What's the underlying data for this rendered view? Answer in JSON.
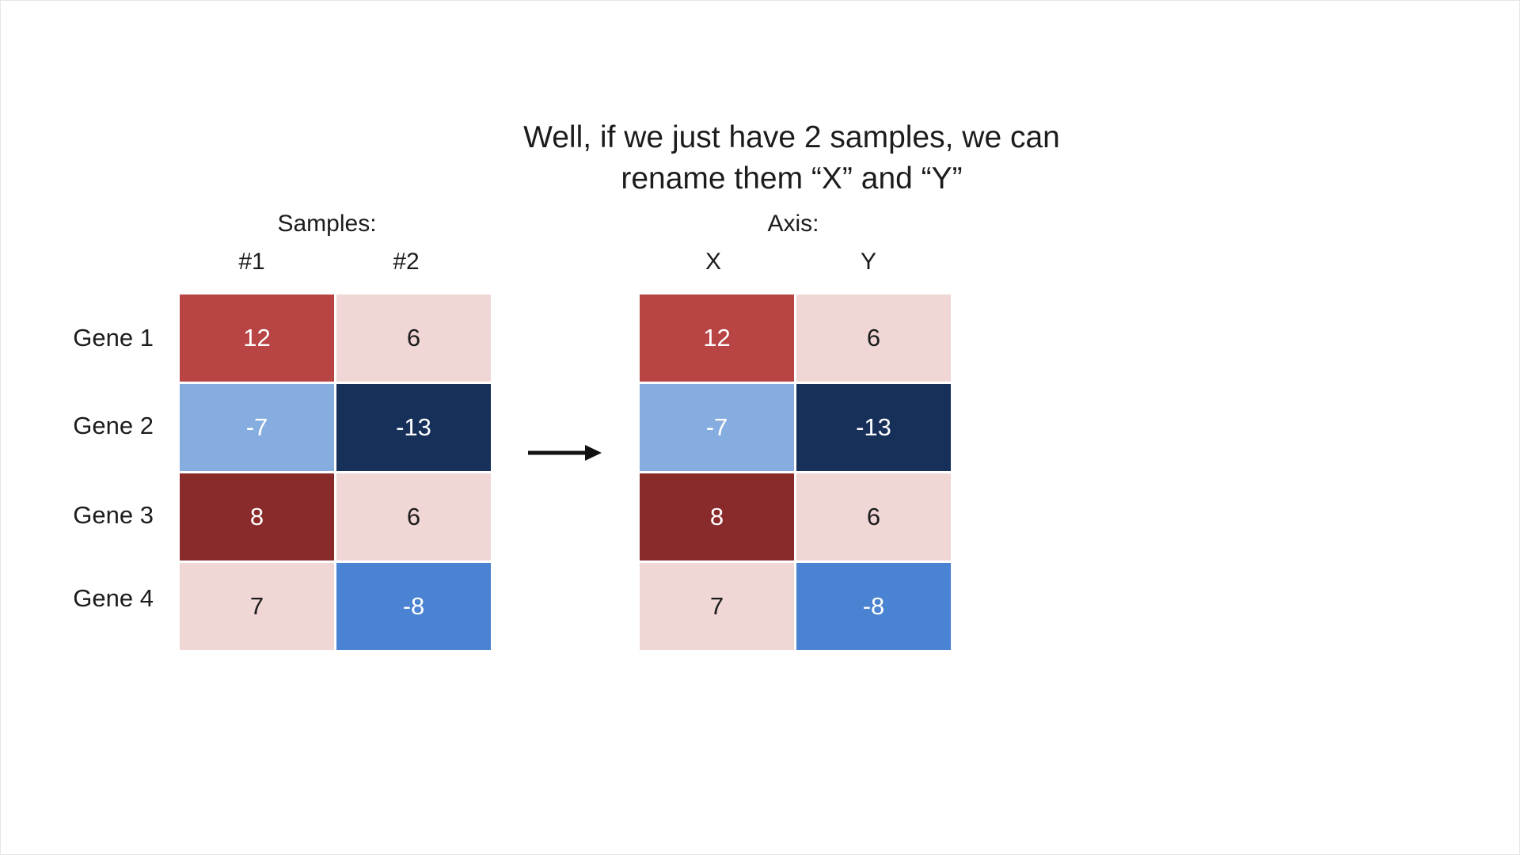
{
  "title": {
    "line1": "Well, if we just have 2 samples, we can",
    "line2": "rename them “X” and “Y”"
  },
  "left_table": {
    "group_label": "Samples:",
    "columns": [
      "#1",
      "#2"
    ],
    "rows": [
      "Gene 1",
      "Gene 2",
      "Gene 3",
      "Gene 4"
    ],
    "cells": [
      [
        {
          "value": "12",
          "color": "#b84444"
        },
        {
          "value": "6",
          "color": "#f1d6d6"
        }
      ],
      [
        {
          "value": "-7",
          "color": "#86addf"
        },
        {
          "value": "-13",
          "color": "#17305a"
        }
      ],
      [
        {
          "value": "8",
          "color": "#8a2b2b"
        },
        {
          "value": "6",
          "color": "#f1d6d6"
        }
      ],
      [
        {
          "value": "7",
          "color": "#f1d6d6"
        },
        {
          "value": "-8",
          "color": "#4a83d1"
        }
      ]
    ]
  },
  "right_table": {
    "group_label": "Axis:",
    "columns": [
      "X",
      "Y"
    ],
    "cells": [
      [
        {
          "value": "12",
          "color": "#b84444"
        },
        {
          "value": "6",
          "color": "#f1d6d6"
        }
      ],
      [
        {
          "value": "-7",
          "color": "#86addf"
        },
        {
          "value": "-13",
          "color": "#17305a"
        }
      ],
      [
        {
          "value": "8",
          "color": "#8a2b2b"
        },
        {
          "value": "6",
          "color": "#f1d6d6"
        }
      ],
      [
        {
          "value": "7",
          "color": "#f1d6d6"
        },
        {
          "value": "-8",
          "color": "#4a83d1"
        }
      ]
    ]
  },
  "arrow": {
    "icon": "right-arrow-icon",
    "color": "#111111"
  }
}
